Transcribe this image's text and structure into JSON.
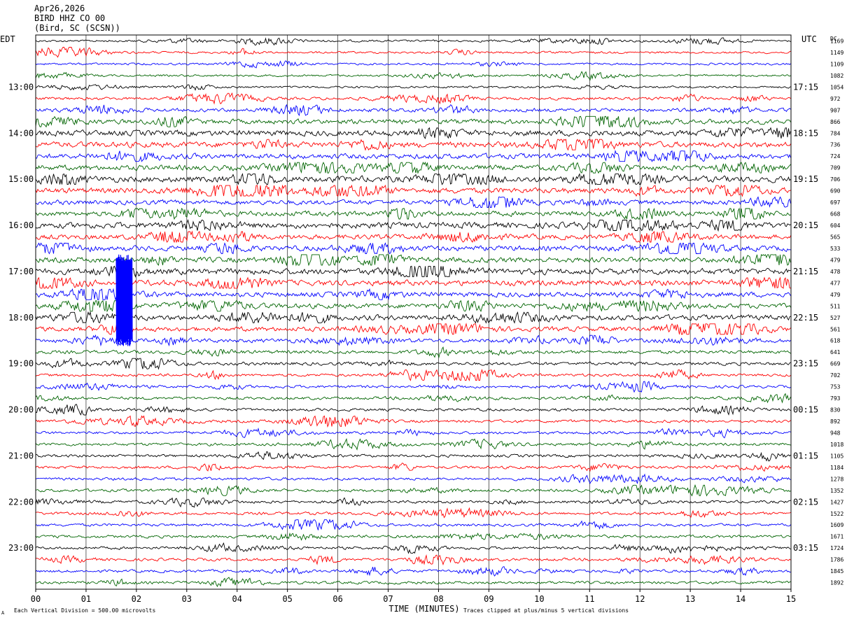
{
  "header": {
    "date": "Apr26,2026",
    "station": "BIRD HHZ CO 00",
    "location": "(Bird, SC (SCSN))"
  },
  "left_axis_label": "EDT",
  "right_axis_label": "UTC",
  "dc_label": "DC",
  "footer": {
    "scale_note": "Each Vertical Division =  500.00 microvolts",
    "clip_note": "Traces clipped at plus/minus 5 vertical divisions",
    "corner_mark": "A"
  },
  "chart_data": {
    "type": "line",
    "title": "BIRD HHZ CO 00",
    "xlabel": "TIME (MINUTES)",
    "ylabel": "",
    "xlim": [
      0,
      15
    ],
    "x_ticks": [
      "00",
      "01",
      "02",
      "03",
      "04",
      "05",
      "06",
      "07",
      "08",
      "09",
      "10",
      "11",
      "12",
      "13",
      "14",
      "15"
    ],
    "trace_minutes_per_line": 15,
    "trace_colors": [
      "#000000",
      "#ff0000",
      "#0000ff",
      "#006400"
    ],
    "left_hour_labels": [
      "13:00",
      "14:00",
      "15:00",
      "16:00",
      "17:00",
      "18:00",
      "19:00",
      "20:00",
      "21:00",
      "22:00",
      "23:00"
    ],
    "right_hour_labels": [
      "17:15",
      "18:15",
      "19:15",
      "20:15",
      "21:15",
      "22:15",
      "23:15",
      "00:15",
      "01:15",
      "02:15",
      "03:15"
    ],
    "hour_label_first_trace": 4,
    "dc_offsets": [
      1169,
      1149,
      1109,
      1082,
      1054,
      972,
      907,
      866,
      784,
      736,
      724,
      709,
      706,
      690,
      697,
      668,
      604,
      565,
      533,
      479,
      478,
      477,
      479,
      511,
      527,
      561,
      618,
      641,
      669,
      702,
      753,
      793,
      830,
      892,
      948,
      1018,
      1105,
      1184,
      1278,
      1352,
      1427,
      1522,
      1609,
      1671,
      1724,
      1786,
      1845,
      1892
    ],
    "activity_level": [
      1.0,
      1.0,
      1.0,
      1.0,
      1.0,
      1.3,
      1.7,
      2.2,
      2.6,
      2.6,
      2.4,
      2.5,
      2.8,
      2.6,
      2.2,
      2.3,
      2.7,
      2.3,
      2.4,
      2.5,
      2.7,
      2.6,
      2.3,
      2.2,
      2.4,
      2.2,
      1.8,
      1.6,
      1.5,
      1.3,
      1.3,
      1.3,
      1.3,
      1.3,
      1.3,
      1.3,
      1.3,
      1.3,
      1.3,
      1.3,
      1.3,
      1.3,
      1.3,
      1.3,
      1.3,
      1.3,
      1.3,
      1.3
    ],
    "clipped_event": {
      "start_minute": 1.6,
      "first_trace": 19,
      "last_trace": 26
    },
    "clip_divisions": 5,
    "microvolts_per_division": 500.0
  }
}
